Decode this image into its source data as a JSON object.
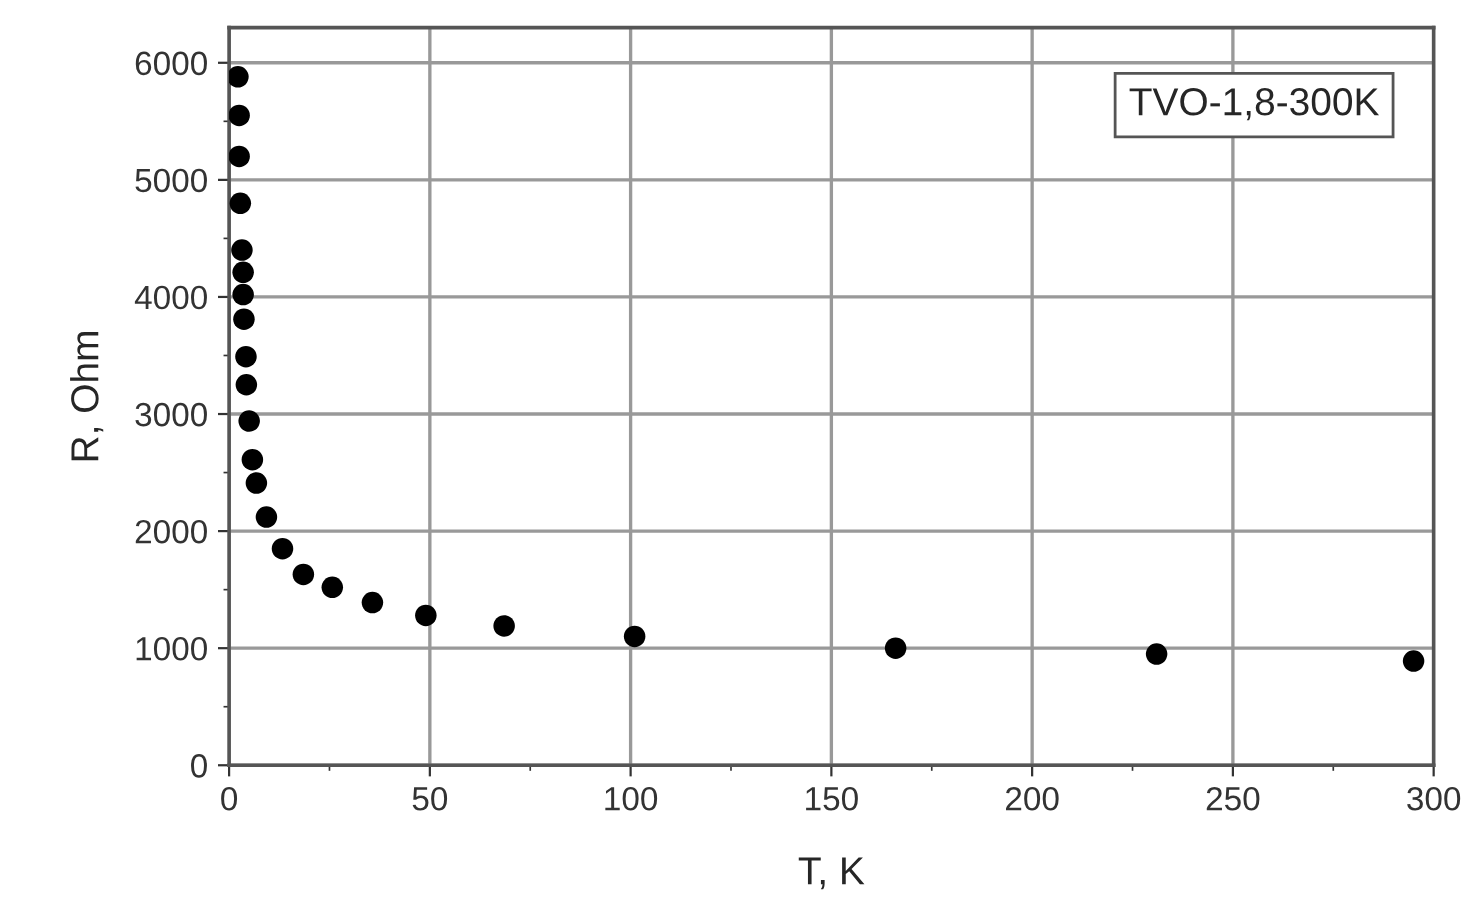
{
  "chart_data": {
    "type": "scatter",
    "xlabel": "T, K",
    "ylabel": "R, Ohm",
    "annotations": [
      "TVO-1,8-300K"
    ],
    "x": [
      2.2,
      2.5,
      2.5,
      2.8,
      3.2,
      3.5,
      3.5,
      3.7,
      4.2,
      4.3,
      5,
      5.8,
      6.8,
      9.3,
      13.3,
      18.5,
      25.7,
      35.7,
      49,
      68.5,
      101,
      166,
      231,
      295
    ],
    "series": [
      {
        "color": "#000000",
        "values": [
          5880,
          5550,
          5200,
          4800,
          4400,
          4210,
          4020,
          3810,
          3490,
          3250,
          2940,
          2610,
          2410,
          2120,
          1850,
          1630,
          1520,
          1390,
          1280,
          1190,
          1100,
          1000,
          950,
          890
        ]
      }
    ],
    "xlim": [
      0,
      300
    ],
    "xticks": [
      0,
      50,
      100,
      150,
      200,
      250,
      300
    ],
    "ylim": [
      0,
      6300
    ],
    "yticks": [
      0,
      1000,
      2000,
      3000,
      4000,
      5000,
      6000
    ],
    "grid": true,
    "marker": "circle"
  }
}
